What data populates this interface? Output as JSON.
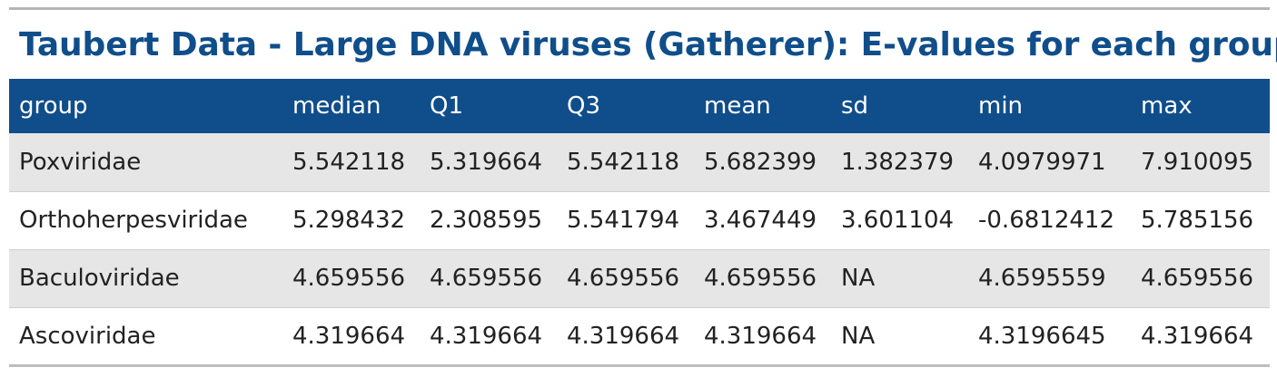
{
  "title": "Taubert Data - Large DNA viruses (Gatherer): E-values for each group",
  "columns": [
    "group",
    "median",
    "Q1",
    "Q3",
    "mean",
    "sd",
    "min",
    "max"
  ],
  "rows": [
    [
      "Poxviridae",
      "5.542118",
      "5.319664",
      "5.542118",
      "5.682399",
      "1.382379",
      "4.0979971",
      "7.910095"
    ],
    [
      "Orthoherpesviridae",
      "5.298432",
      "2.308595",
      "5.541794",
      "3.467449",
      "3.601104",
      "-0.6812412",
      "5.785156"
    ],
    [
      "Baculoviridae",
      "4.659556",
      "4.659556",
      "4.659556",
      "4.659556",
      "NA",
      "4.6595559",
      "4.659556"
    ],
    [
      "Ascoviridae",
      "4.319664",
      "4.319664",
      "4.319664",
      "4.319664",
      "NA",
      "4.3196645",
      "4.319664"
    ]
  ],
  "colors": {
    "header_bg": "#104e8b",
    "title_text": "#104e8b",
    "stripe": "#e6e6e6"
  }
}
